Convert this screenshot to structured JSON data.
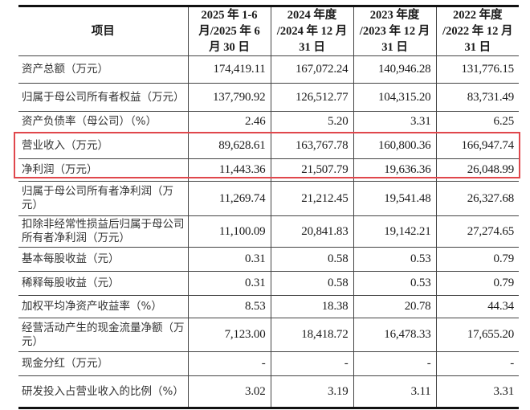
{
  "table": {
    "headers": [
      "项目",
      "2025 年 1-6 月/2025 年 6 月 30 日",
      "2024 年度 /2024 年 12 月 31 日",
      "2023 年度 /2023 年 12 月 31 日",
      "2022 年度 /2022 年 12 月 31 日"
    ],
    "rows": [
      {
        "label": "资产总额（万元）",
        "values": [
          "174,419.11",
          "167,072.24",
          "140,946.28",
          "131,776.15"
        ]
      },
      {
        "label": "归属于母公司所有者权益（万元）",
        "values": [
          "137,790.92",
          "126,512.77",
          "104,315.20",
          "83,731.49"
        ]
      },
      {
        "label": "资产负债率（母公司）（%）",
        "values": [
          "2.46",
          "5.20",
          "3.31",
          "6.25"
        ]
      },
      {
        "label": "营业收入（万元）",
        "values": [
          "89,628.61",
          "163,767.78",
          "160,800.36",
          "166,947.74"
        ]
      },
      {
        "label": "净利润（万元）",
        "values": [
          "11,443.36",
          "21,507.79",
          "19,636.36",
          "26,048.99"
        ]
      },
      {
        "label": "归属于母公司所有者净利润（万元）",
        "values": [
          "11,269.74",
          "21,212.45",
          "19,541.48",
          "26,327.68"
        ]
      },
      {
        "label": "扣除非经常性损益后归属于母公司所有者净利润（万元）",
        "values": [
          "11,100.09",
          "20,841.83",
          "19,142.21",
          "27,274.65"
        ]
      },
      {
        "label": "基本每股收益（元）",
        "values": [
          "0.31",
          "0.58",
          "0.53",
          "0.79"
        ]
      },
      {
        "label": "稀释每股收益（元）",
        "values": [
          "0.31",
          "0.58",
          "0.53",
          "0.79"
        ]
      },
      {
        "label": "加权平均净资产收益率（%）",
        "values": [
          "8.53",
          "18.38",
          "20.78",
          "44.34"
        ]
      },
      {
        "label": "经营活动产生的现金流量净额（万元）",
        "values": [
          "7,123.00",
          "18,418.72",
          "16,478.33",
          "17,655.20"
        ]
      },
      {
        "label": "现金分红（万元）",
        "values": [
          "-",
          "-",
          "-",
          "-"
        ]
      },
      {
        "label": "研发投入占营业收入的比例（%）",
        "values": [
          "3.02",
          "3.19",
          "3.11",
          "3.31"
        ]
      }
    ],
    "highlight_color": "#e0474c"
  }
}
